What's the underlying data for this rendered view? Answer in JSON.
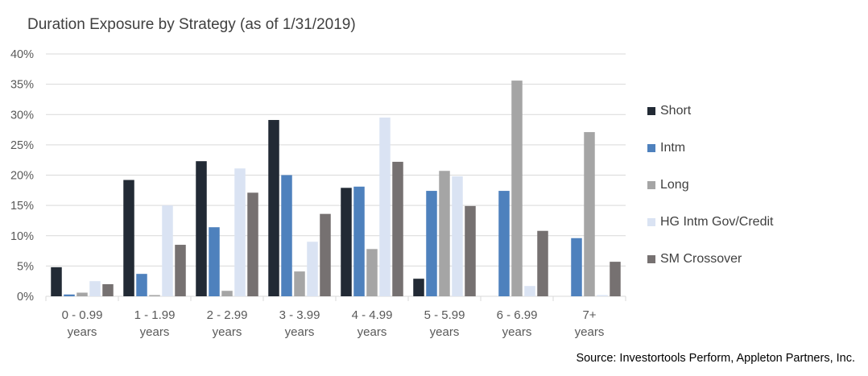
{
  "colors": {
    "short": "#222a35",
    "intm": "#4e81bd",
    "long": "#a5a5a5",
    "hg": "#dae3f3",
    "sm": "#767171",
    "axis_text": "#595959",
    "gridline": "#d9d9d9",
    "title_text": "#404040"
  },
  "chart_data": {
    "type": "bar",
    "title": "Duration Exposure by Strategy (as of 1/31/2019)",
    "xlabel": "",
    "ylabel": "",
    "ylim": [
      0,
      40
    ],
    "y_ticks": [
      "0%",
      "5%",
      "10%",
      "15%",
      "20%",
      "25%",
      "30%",
      "35%",
      "40%"
    ],
    "y_tick_values": [
      0,
      5,
      10,
      15,
      20,
      25,
      30,
      35,
      40
    ],
    "grid": true,
    "legend_position": "right",
    "categories": [
      [
        "0 - 0.99",
        "years"
      ],
      [
        "1 - 1.99",
        "years"
      ],
      [
        "2 - 2.99",
        "years"
      ],
      [
        "3 - 3.99",
        "years"
      ],
      [
        "4 - 4.99",
        "years"
      ],
      [
        "5 - 5.99",
        "years"
      ],
      [
        "6 - 6.99",
        "years"
      ],
      [
        "7+",
        "years"
      ]
    ],
    "series": [
      {
        "name": "Short",
        "color": "#222a35",
        "values": [
          4.8,
          19.2,
          22.3,
          29.1,
          17.9,
          2.9,
          0,
          0
        ]
      },
      {
        "name": "Intm",
        "color": "#4e81bd",
        "values": [
          0.3,
          3.7,
          11.4,
          20.0,
          18.1,
          17.4,
          17.4,
          9.6
        ]
      },
      {
        "name": "Long",
        "color": "#a5a5a5",
        "values": [
          0.6,
          0.2,
          0.9,
          4.1,
          7.8,
          20.7,
          35.6,
          27.1
        ]
      },
      {
        "name": "HG Intm Gov/Credit",
        "color": "#dae3f3",
        "values": [
          2.5,
          15.0,
          21.1,
          9.0,
          29.5,
          19.8,
          1.7,
          0.2
        ]
      },
      {
        "name": "SM Crossover",
        "color": "#767171",
        "values": [
          2.0,
          8.5,
          17.1,
          13.6,
          22.2,
          14.9,
          10.8,
          5.7
        ]
      }
    ]
  },
  "source": "Source: Investortools Perform, Appleton Partners, Inc."
}
